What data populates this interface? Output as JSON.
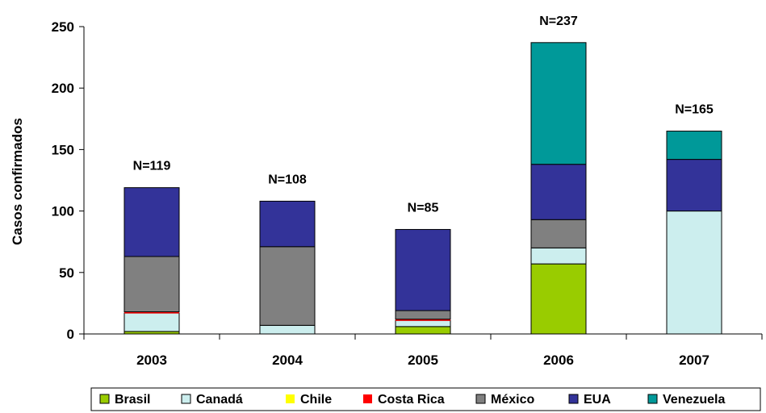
{
  "chart_data": {
    "type": "bar",
    "stacked": true,
    "ylabel": "Casos confirmados",
    "ylim": [
      0,
      250
    ],
    "yticks": [
      0,
      50,
      100,
      150,
      200,
      250
    ],
    "categories": [
      "2003",
      "2004",
      "2005",
      "2006",
      "2007"
    ],
    "totals": [
      "N=119",
      "N=108",
      "N=85",
      "N=237",
      "N=165"
    ],
    "series": [
      {
        "name": "Brasil",
        "color": "#99CC00",
        "values": [
          2,
          0,
          6,
          57,
          0
        ]
      },
      {
        "name": "Canadá",
        "color": "#CCEEEE",
        "values": [
          15,
          7,
          5,
          13,
          100
        ]
      },
      {
        "name": "Chile",
        "color": "#FFFF00",
        "values": [
          0,
          0,
          0,
          0,
          0
        ]
      },
      {
        "name": "Costa Rica",
        "color": "#FF0000",
        "values": [
          1,
          0,
          1,
          0,
          0
        ]
      },
      {
        "name": "México",
        "color": "#808080",
        "values": [
          45,
          64,
          7,
          23,
          0
        ]
      },
      {
        "name": "EUA",
        "color": "#333399",
        "values": [
          56,
          37,
          66,
          45,
          42
        ]
      },
      {
        "name": "Venezuela",
        "color": "#009999",
        "values": [
          0,
          0,
          0,
          99,
          23
        ]
      }
    ],
    "grid": false,
    "legend": "bottom"
  }
}
